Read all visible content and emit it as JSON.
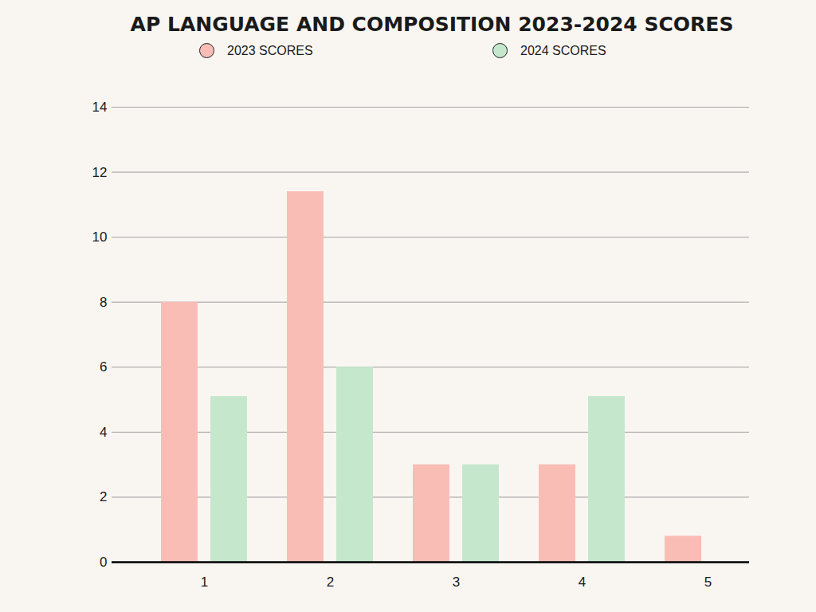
{
  "chart_data": {
    "type": "bar",
    "title": "AP LANGUAGE AND COMPOSITION 2023-2024 SCORES",
    "categories": [
      "1",
      "2",
      "3",
      "4",
      "5"
    ],
    "series": [
      {
        "name": "2023 SCORES",
        "color": "#f9bdb6",
        "values": [
          8,
          11.4,
          3,
          3,
          0.8
        ]
      },
      {
        "name": "2024 SCORES",
        "color": "#c5e8cd",
        "values": [
          5.1,
          6,
          3,
          5.1,
          0
        ]
      }
    ],
    "ylim": [
      0,
      14
    ],
    "yticks": [
      0,
      2,
      4,
      6,
      8,
      10,
      12,
      14
    ],
    "grid": true,
    "legend": "top"
  }
}
